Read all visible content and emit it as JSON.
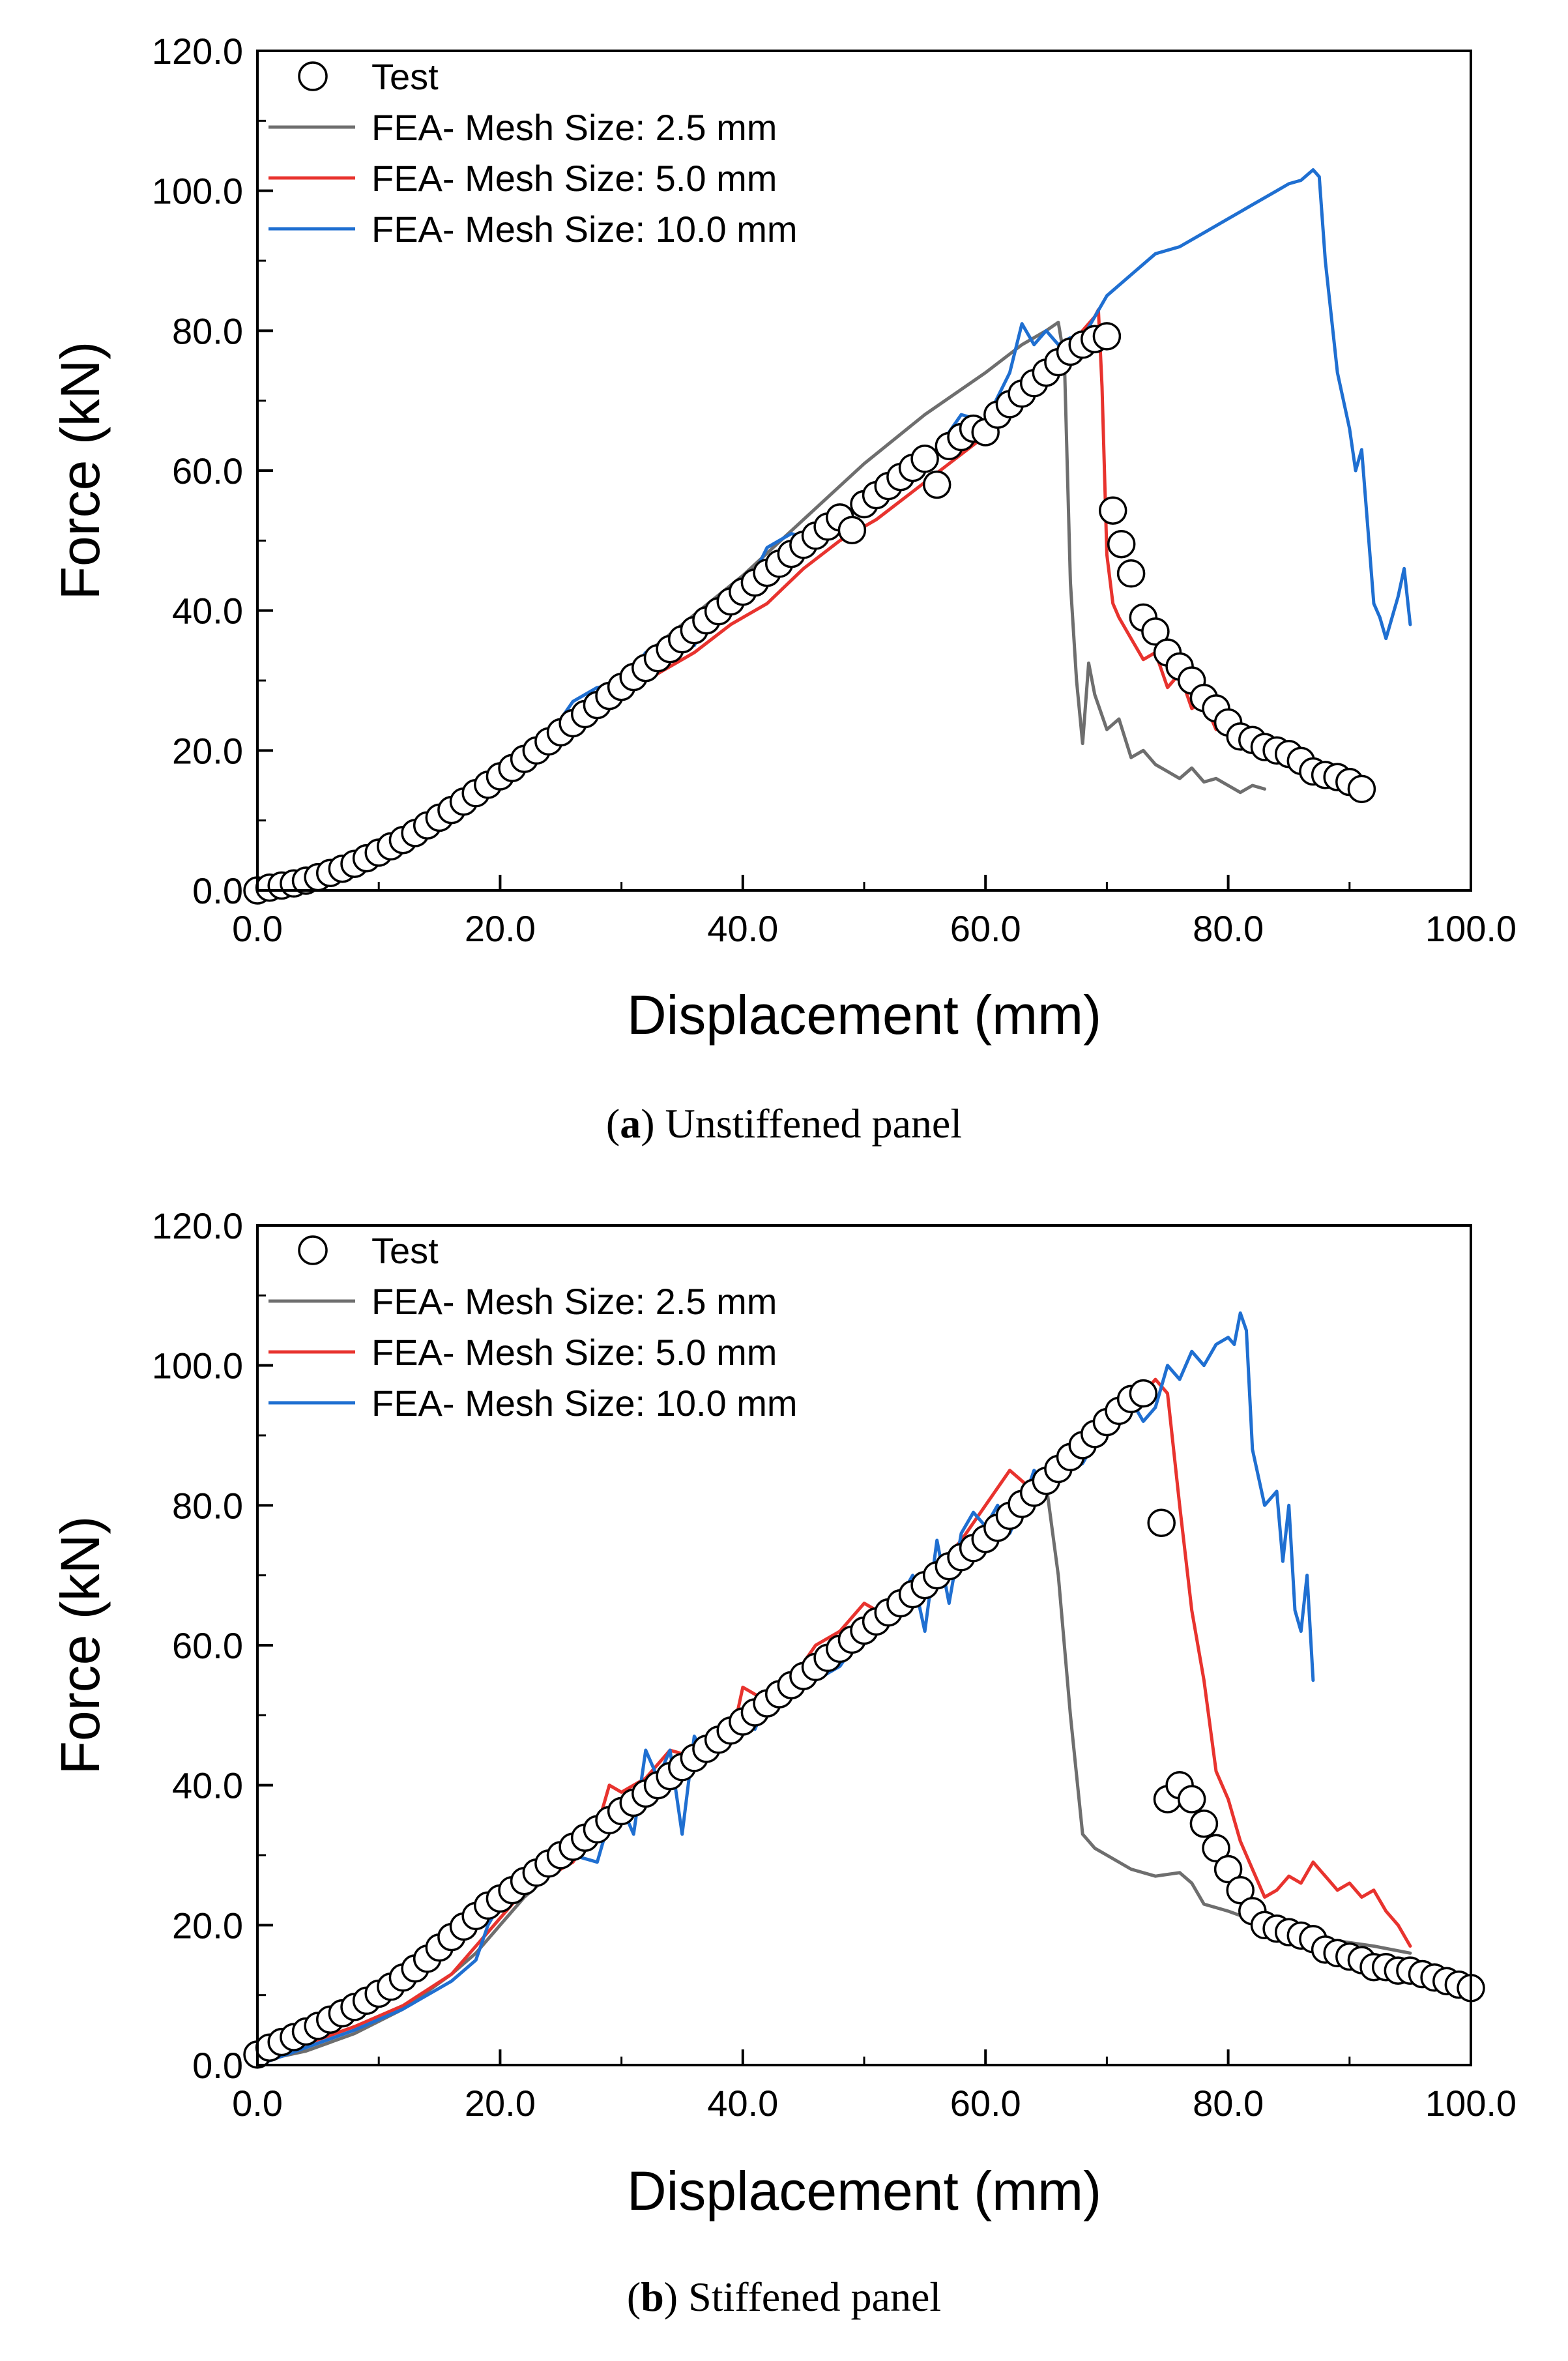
{
  "chart_data": [
    {
      "type": "line",
      "title": "",
      "caption": {
        "letter": "a",
        "text": "Unstiffened panel"
      },
      "xlabel": "Displacement (mm)",
      "ylabel": "Force (kN)",
      "xlim": [
        0,
        100
      ],
      "ylim": [
        0,
        120
      ],
      "xticks": [
        0,
        20,
        40,
        60,
        80,
        100
      ],
      "yticks": [
        0,
        20,
        40,
        60,
        80,
        100,
        120
      ],
      "xtick_labels": [
        "0.0",
        "20.0",
        "40.0",
        "60.0",
        "80.0",
        "100.0"
      ],
      "ytick_labels": [
        "0.0",
        "20.0",
        "40.0",
        "60.0",
        "80.0",
        "100.0",
        "120.0"
      ],
      "grid": false,
      "legend_position": "top-left",
      "series": [
        {
          "name": "Test",
          "kind": "scatter",
          "color": "#000000",
          "x": [
            0,
            1,
            2,
            3,
            4,
            5,
            6,
            7,
            8,
            9,
            10,
            11,
            12,
            13,
            14,
            15,
            16,
            17,
            18,
            19,
            20,
            21,
            22,
            23,
            24,
            25,
            26,
            27,
            28,
            29,
            30,
            31,
            32,
            33,
            34,
            35,
            36,
            37,
            38,
            39,
            40,
            41,
            42,
            43,
            44,
            45,
            46,
            47,
            48,
            49,
            50,
            51,
            52,
            53,
            54,
            55,
            56,
            57,
            58,
            59,
            60,
            61,
            62,
            63,
            64,
            65,
            66,
            67,
            68,
            69,
            70,
            70.5,
            71.2,
            72,
            73,
            74,
            75,
            76,
            77,
            78,
            79,
            80,
            81,
            82,
            83,
            84,
            85,
            86,
            87,
            88,
            89,
            90,
            91
          ],
          "y": [
            0,
            0.4,
            0.7,
            1,
            1.4,
            1.9,
            2.5,
            3.1,
            3.8,
            4.6,
            5.4,
            6.3,
            7.2,
            8.2,
            9.3,
            10.4,
            11.5,
            12.7,
            13.9,
            15.1,
            16.3,
            17.5,
            18.8,
            20,
            21.3,
            22.6,
            23.9,
            25.2,
            26.5,
            27.8,
            29.1,
            30.5,
            31.8,
            33.2,
            34.5,
            35.9,
            37.2,
            38.6,
            39.9,
            41.3,
            42.7,
            44,
            45.4,
            46.7,
            48.1,
            49.4,
            50.7,
            52,
            53.3,
            51.5,
            55.2,
            56.5,
            57.8,
            59.1,
            60.4,
            61.7,
            58,
            63.5,
            64.8,
            66,
            65.5,
            68,
            69.5,
            71,
            72.5,
            74,
            75.5,
            77,
            78,
            78.8,
            79.2,
            54.3,
            49.5,
            45.3,
            39,
            37,
            34,
            32,
            30,
            27.5,
            26,
            24,
            22,
            21.5,
            20.5,
            20,
            19.5,
            18.5,
            17,
            16.5,
            16.2,
            15.5,
            14.5
          ]
        },
        {
          "name": "FEA- Mesh Size: 2.5 mm",
          "kind": "line",
          "color": "#6e6e6e",
          "x": [
            0,
            5,
            10,
            15,
            20,
            25,
            30,
            35,
            40,
            45,
            50,
            55,
            60,
            63,
            65,
            66,
            66.5,
            67,
            67.5,
            68,
            68.5,
            69,
            70,
            71,
            72,
            73,
            74,
            75,
            76,
            77,
            78,
            79,
            80,
            81,
            82,
            83
          ],
          "y": [
            0,
            1.5,
            5,
            10,
            16,
            24,
            31,
            38,
            45,
            53,
            61,
            68,
            74,
            78,
            80,
            81.2,
            76,
            44,
            30,
            21,
            32.5,
            28,
            23,
            24.5,
            19,
            20,
            18,
            17,
            16,
            17.5,
            15.5,
            16,
            15,
            14,
            15,
            14.5
          ]
        },
        {
          "name": "FEA- Mesh Size: 5.0 mm",
          "kind": "line",
          "color": "#e8332e",
          "x": [
            0,
            3,
            6,
            9,
            12,
            15,
            18,
            21,
            24,
            27,
            30,
            33,
            36,
            39,
            42,
            45,
            48,
            51,
            54,
            57,
            60,
            63,
            65,
            67,
            68,
            69,
            69.3,
            69.6,
            70,
            70.5,
            71,
            72,
            73,
            74,
            75,
            76,
            77,
            78,
            79,
            80,
            81,
            82,
            83,
            84,
            85
          ],
          "y": [
            0,
            0.8,
            2,
            3.7,
            6.5,
            10,
            14.5,
            18,
            22,
            25,
            28,
            31,
            34,
            38,
            41,
            46,
            50,
            53,
            57,
            61,
            65,
            70,
            74,
            77,
            80,
            82,
            83,
            72,
            48,
            41,
            39,
            36,
            33,
            34,
            29,
            31,
            26,
            27,
            23,
            24,
            21,
            22,
            20,
            21,
            20.5
          ]
        },
        {
          "name": "FEA- Mesh Size: 10.0 mm",
          "kind": "line",
          "color": "#1f6fd1",
          "x": [
            0,
            4,
            8,
            12,
            16,
            18,
            20,
            22,
            24,
            26,
            28,
            30,
            32,
            34,
            36,
            38,
            40,
            42,
            44,
            46,
            48,
            50,
            52,
            54,
            56,
            58,
            60,
            62,
            63,
            64,
            65,
            66,
            67,
            68,
            70,
            72,
            74,
            76,
            78,
            80,
            82,
            84,
            85,
            86,
            87,
            87.5,
            88,
            89,
            90,
            90.5,
            91,
            92,
            92.5,
            93,
            94,
            94.5,
            95
          ],
          "y": [
            0,
            1.5,
            4,
            8,
            12,
            15.5,
            17,
            20.5,
            22,
            27,
            29,
            29.5,
            34,
            36,
            35,
            41,
            42,
            49,
            51,
            50,
            53,
            55,
            59,
            61,
            63,
            68,
            67,
            74,
            81,
            78,
            80,
            78,
            79,
            79,
            85,
            88,
            91,
            92,
            94,
            96,
            98,
            100,
            101,
            101.5,
            103,
            102,
            90,
            74,
            66,
            60,
            63,
            41,
            39,
            36,
            42,
            46,
            38
          ]
        }
      ]
    },
    {
      "type": "line",
      "title": "",
      "caption": {
        "letter": "b",
        "text": "Stiffened panel"
      },
      "xlabel": "Displacement (mm)",
      "ylabel": "Force (kN)",
      "xlim": [
        0,
        100
      ],
      "ylim": [
        0,
        120
      ],
      "xticks": [
        0,
        20,
        40,
        60,
        80,
        100
      ],
      "yticks": [
        0,
        20,
        40,
        60,
        80,
        100,
        120
      ],
      "xtick_labels": [
        "0.0",
        "20.0",
        "40.0",
        "60.0",
        "80.0",
        "100.0"
      ],
      "ytick_labels": [
        "0.0",
        "20.0",
        "40.0",
        "60.0",
        "80.0",
        "100.0",
        "120.0"
      ],
      "grid": false,
      "legend_position": "top-left",
      "series": [
        {
          "name": "Test",
          "kind": "scatter",
          "color": "#000000",
          "x": [
            0,
            1,
            2,
            3,
            4,
            5,
            6,
            7,
            8,
            9,
            10,
            11,
            12,
            13,
            14,
            15,
            16,
            17,
            18,
            19,
            20,
            21,
            22,
            23,
            24,
            25,
            26,
            27,
            28,
            29,
            30,
            31,
            32,
            33,
            34,
            35,
            36,
            37,
            38,
            39,
            40,
            41,
            42,
            43,
            44,
            45,
            46,
            47,
            48,
            49,
            50,
            51,
            52,
            53,
            54,
            55,
            56,
            57,
            58,
            59,
            60,
            61,
            62,
            63,
            64,
            65,
            66,
            67,
            68,
            69,
            70,
            71,
            72,
            73,
            74.5,
            75,
            76,
            77,
            78,
            79,
            80,
            81,
            82,
            83,
            84,
            85,
            86,
            87,
            88,
            89,
            90,
            91,
            92,
            93,
            94,
            95,
            96,
            97,
            98,
            99,
            100
          ],
          "y": [
            1.5,
            2.5,
            3.3,
            4,
            4.8,
            5.6,
            6.5,
            7.4,
            8.3,
            9.2,
            10.2,
            11.2,
            12.5,
            13.8,
            15.2,
            16.8,
            18.3,
            19.8,
            21.3,
            22.8,
            23.8,
            25,
            26.3,
            27.5,
            28.8,
            30,
            31.2,
            32.5,
            33.7,
            35,
            36.3,
            37.5,
            38.8,
            40,
            41.3,
            42.6,
            43.9,
            45.2,
            46.5,
            47.8,
            49.1,
            50.4,
            51.7,
            53,
            54.3,
            55.6,
            56.9,
            58.2,
            59.5,
            60.8,
            62.1,
            63.4,
            64.7,
            66,
            67.3,
            68.6,
            70,
            71.3,
            72.6,
            73.9,
            75.2,
            76.8,
            78.5,
            80.2,
            81.8,
            83.5,
            85.2,
            86.9,
            88.6,
            90.2,
            91.9,
            93.5,
            95.2,
            96,
            77.5,
            38,
            40,
            38,
            34.5,
            31,
            28,
            25,
            22,
            20,
            19.5,
            19,
            18.5,
            18,
            16.5,
            16,
            15.5,
            15,
            14,
            14,
            13.5,
            13.5,
            13,
            12.5,
            12,
            11.5,
            11
          ]
        },
        {
          "name": "FEA- Mesh Size: 2.5 mm",
          "kind": "line",
          "color": "#6e6e6e",
          "x": [
            0,
            4,
            8,
            12,
            16,
            18,
            20,
            22,
            24,
            26,
            28,
            30,
            32,
            34,
            36,
            38,
            40,
            42,
            44,
            46,
            48,
            50,
            52,
            54,
            56,
            58,
            60,
            62,
            64,
            65,
            66,
            67,
            68,
            69,
            70,
            72,
            74,
            76,
            77,
            78,
            80,
            84,
            88,
            92,
            95
          ],
          "y": [
            0.5,
            2,
            4.5,
            8,
            13,
            16,
            20,
            24,
            27,
            29.5,
            33,
            35.5,
            39,
            41.5,
            44,
            46,
            48.5,
            51,
            53.5,
            56,
            59,
            62,
            64.5,
            67,
            69,
            71.5,
            74,
            77,
            80,
            83,
            70,
            50,
            33,
            31,
            30,
            28,
            27,
            27.5,
            26,
            23,
            22,
            19.5,
            18,
            17,
            16
          ]
        },
        {
          "name": "FEA- Mesh Size: 5.0 mm",
          "kind": "line",
          "color": "#e8332e",
          "x": [
            0,
            4,
            8,
            12,
            16,
            18,
            20,
            22,
            24,
            26,
            28,
            29,
            30,
            32,
            34,
            36,
            38,
            39,
            40,
            42,
            44,
            46,
            48,
            50,
            52,
            54,
            56,
            58,
            60,
            62,
            64,
            66,
            68,
            70,
            72,
            73,
            74,
            75,
            76,
            77,
            78,
            79,
            80,
            81,
            82,
            83,
            84,
            85,
            86,
            87,
            88,
            89,
            90,
            91,
            92,
            93,
            94,
            95
          ],
          "y": [
            0.5,
            3,
            5.5,
            8.5,
            13,
            17,
            21,
            25,
            27,
            29,
            34,
            40,
            39,
            41,
            45,
            44,
            48,
            46,
            54,
            52,
            55,
            60,
            62,
            66,
            64,
            69,
            71,
            75,
            80,
            85,
            82,
            86,
            88,
            92,
            95,
            96,
            98,
            96,
            80,
            65,
            55,
            42,
            38,
            32,
            28,
            24,
            25,
            27,
            26,
            29,
            27,
            25,
            26,
            24,
            25,
            22,
            20,
            17
          ]
        },
        {
          "name": "FEA- Mesh Size: 10.0 mm",
          "kind": "line",
          "color": "#1f6fd1",
          "x": [
            0,
            4,
            8,
            12,
            16,
            18,
            19,
            20,
            22,
            24,
            26,
            28,
            29,
            30,
            31,
            32,
            33,
            34,
            35,
            36,
            37,
            38,
            39,
            40,
            41,
            42,
            44,
            46,
            48,
            50,
            52,
            53,
            54,
            55,
            56,
            57,
            58,
            59,
            60,
            61,
            62,
            63,
            64,
            65,
            66,
            67,
            68,
            69,
            70,
            71,
            72,
            73,
            74,
            75,
            76,
            77,
            78,
            79,
            80,
            80.5,
            81,
            81.5,
            82,
            83,
            84,
            84.5,
            85,
            85.5,
            86,
            86.5,
            87
          ],
          "y": [
            0,
            2.5,
            5,
            8,
            12,
            15,
            20,
            23,
            28,
            27,
            30,
            29,
            35,
            37,
            33,
            45,
            41,
            45,
            33,
            47,
            44,
            48,
            46,
            50,
            48,
            52,
            54,
            55,
            57,
            62,
            65,
            67,
            70,
            62,
            75,
            66,
            76,
            79,
            77,
            80,
            76,
            80,
            85,
            83,
            87,
            85,
            86,
            89,
            90,
            93,
            95,
            92,
            94,
            100,
            98,
            102,
            100,
            103,
            104,
            103,
            107.5,
            105,
            88,
            80,
            82,
            72,
            80,
            65,
            62,
            70,
            55
          ]
        }
      ]
    }
  ]
}
